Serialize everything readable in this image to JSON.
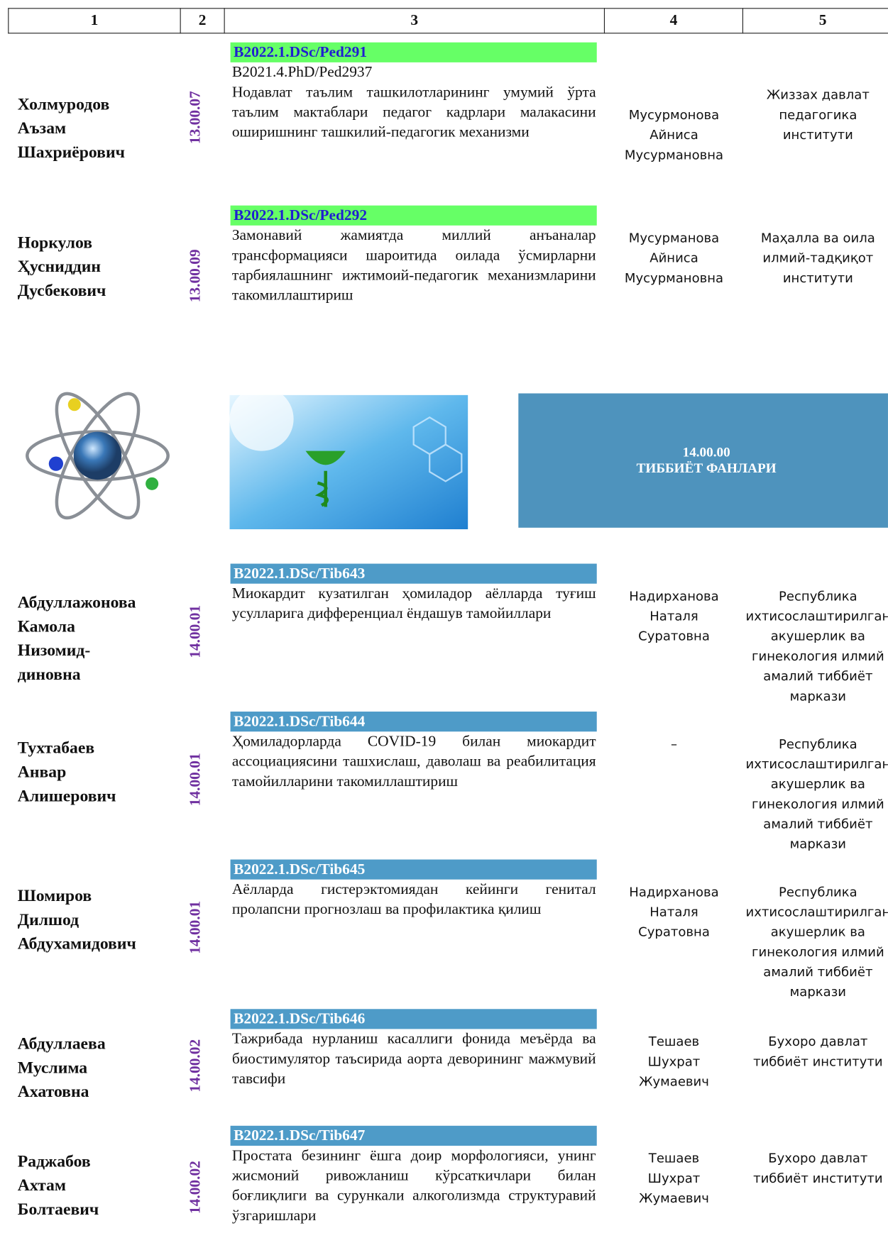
{
  "header": {
    "columns": [
      "1",
      "2",
      "3",
      "4",
      "5"
    ]
  },
  "rows": [
    {
      "name": [
        "Холмуродов",
        "Аъзам",
        "Шахриёрович"
      ],
      "code": "13.00.07",
      "cipher": "B2022.1.DSc/Ped291",
      "extra": "B2021.4.PhD/Ped2937",
      "title": "Нодавлат таълим ташкилотларининг умумий ўрта таълим мактаблари педагог кадрлари малакасини оширишнинг ташкилий-педагогик механизми",
      "supervisor": [
        "Мусурмонова",
        "Айниса",
        "Мусурмановна"
      ],
      "institution": "Жиззах давлат педагогика институти"
    },
    {
      "name": [
        "Норкулов",
        "Ҳусниддин",
        "Дусбекович"
      ],
      "code": "13.00.09",
      "cipher": "B2022.1.DSc/Ped292",
      "title": "Замонавий жамиятда миллий анъаналар трансформацияси шароитида оилада ўсмирларни тарбиялашнинг ижтимоий-педагогик механизмларини такомиллаштириш",
      "supervisor": [
        "Мусурманова",
        "Айниса",
        "Мусурмановна"
      ],
      "institution": "Маҳалла ва оила илмий-тадқиқот институти"
    },
    {
      "name": [
        "Абдуллажонова",
        "Камола",
        "Низомид-",
        "диновна"
      ],
      "code": "14.00.01",
      "cipher": "B2022.1.DSc/Tib643",
      "title": "Миокардит кузатилган ҳомиладор аёлларда туғиш усулларига дифференциал ёндашув тамойиллари",
      "supervisor": [
        "Надирханова",
        "Наталя",
        "Суратовна"
      ],
      "institution": "Республика ихтисослаштирилган акушерлик ва гинекология илмий амалий тиббиёт маркази"
    },
    {
      "name": [
        "Тухтабаев",
        "Анвар",
        "Алишерович"
      ],
      "code": "14.00.01",
      "cipher": "B2022.1.DSc/Tib644",
      "title": "Ҳомиладорларда COVID-19 билан миокардит ассоциациясини ташхислаш, даволаш ва реабилитация тамойилларини такомиллаштириш",
      "supervisor": [
        "–"
      ],
      "institution": "Республика ихтисослаштирилган акушерлик ва гинекология илмий амалий тиббиёт маркази"
    },
    {
      "name": [
        "Шомиров",
        "Дилшод",
        "Абдухамидович"
      ],
      "code": "14.00.01",
      "cipher": "B2022.1.DSc/Tib645",
      "title": "Аёлларда гистерэктомиядан кейинги генитал пролапсни прогнозлаш ва профилактика қилиш",
      "supervisor": [
        "Надирханова",
        "Наталя",
        "Суратовна"
      ],
      "institution": "Республика ихтисослаштирилган акушерлик ва гинекология илмий амалий тиббиёт маркази"
    },
    {
      "name": [
        "Абдуллаева",
        "Муслима",
        "Ахатовна"
      ],
      "code": "14.00.02",
      "cipher": "B2022.1.DSc/Tib646",
      "title": "Тажрибада нурланиш касаллиги фонида меъёрда ва биостимулятор таъсирида аорта деворининг мажмувий тавсифи",
      "supervisor": [
        "Тешаев",
        "Шухрат",
        "Жумаевич"
      ],
      "institution": "Бухоро давлат тиббиёт институти"
    },
    {
      "name": [
        "Раджабов",
        "Ахтам",
        "Болтаевич"
      ],
      "code": "14.00.02",
      "cipher": "B2022.1.DSc/Tib647",
      "title": "Простата безининг ёшга доир морфологияси, унинг жисмоний ривожланиш кўрсаткичлари билан боғлиқлиги ва сурункали алкоголизмда структуравий ўзгаришлари",
      "supervisor": [
        "Тешаев",
        "Шухрат",
        "Жумаевич"
      ],
      "institution": "Бухоро давлат тиббиёт институти"
    }
  ],
  "banner": {
    "code": "14.00.00",
    "title": "ТИББИЁТ ФАНЛАРИ"
  }
}
